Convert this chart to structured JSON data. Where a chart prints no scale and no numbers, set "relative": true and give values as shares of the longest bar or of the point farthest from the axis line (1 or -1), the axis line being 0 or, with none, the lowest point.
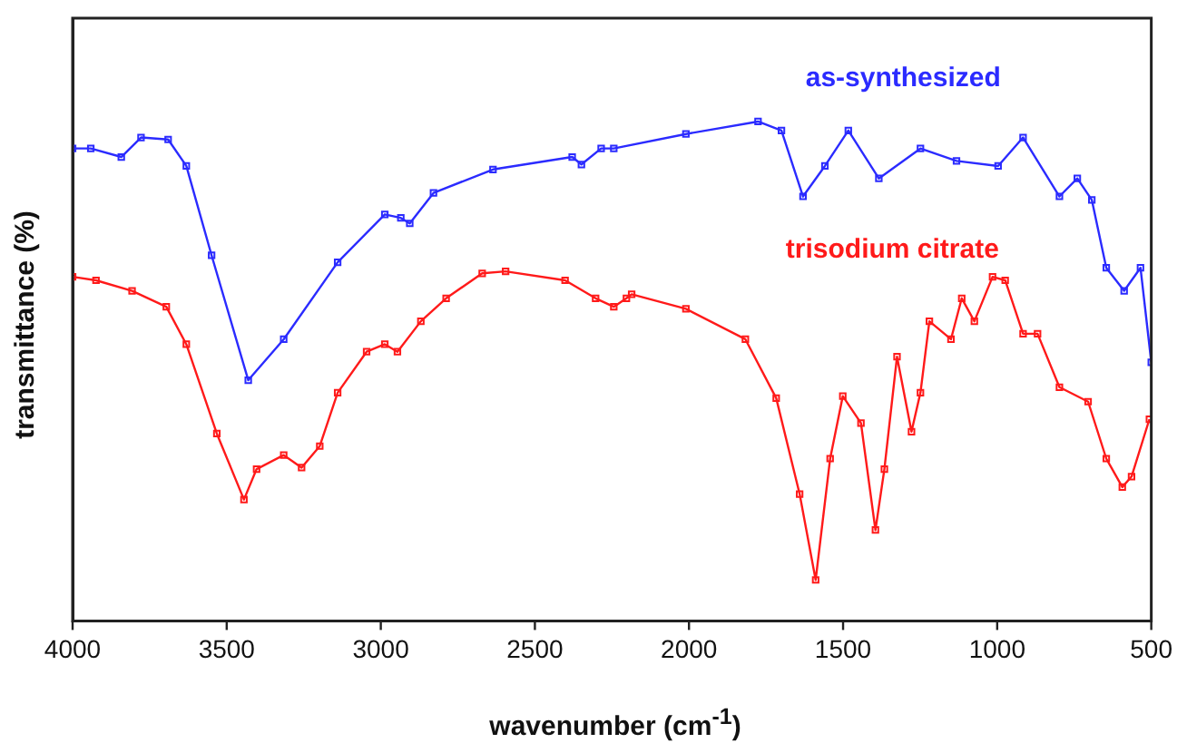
{
  "chart_data": {
    "type": "line",
    "xlabel": "wavenumber (cm$^{-1}$)",
    "ylabel": "transmittance (%)",
    "relative": true,
    "xlim": [
      4000,
      500
    ],
    "xticks": [
      4000,
      3500,
      3000,
      2500,
      2000,
      1500,
      1000,
      500
    ],
    "tick_labels": "x",
    "grid": false,
    "legend": false,
    "marker": "square",
    "line_style": "solid",
    "series": [
      {
        "name": "as-synthesized",
        "color": "#2b2bff",
        "x": [
          4000,
          3941,
          3842,
          3778,
          3690,
          3631,
          3549,
          3430,
          3315,
          3140,
          2987,
          2935,
          2906,
          2829,
          2636,
          2379,
          2349,
          2285,
          2244,
          2010,
          1776,
          1700,
          1630,
          1559,
          1483,
          1384,
          1249,
          1132,
          997,
          916,
          798,
          740,
          693,
          646,
          588,
          535,
          500
        ],
        "values": [
          0.946,
          0.946,
          0.929,
          0.968,
          0.964,
          0.911,
          0.732,
          0.482,
          0.564,
          0.718,
          0.814,
          0.807,
          0.796,
          0.857,
          0.904,
          0.929,
          0.914,
          0.946,
          0.946,
          0.975,
          1,
          0.982,
          0.85,
          0.911,
          0.982,
          0.886,
          0.946,
          0.921,
          0.911,
          0.968,
          0.85,
          0.886,
          0.843,
          0.707,
          0.661,
          0.707,
          0.518
        ]
      },
      {
        "name": "trisodium citrate",
        "color": "#ff1a1a",
        "x": [
          4000,
          3924,
          3807,
          3696,
          3631,
          3532,
          3444,
          3403,
          3315,
          3257,
          3198,
          3140,
          3046,
          2987,
          2946,
          2870,
          2788,
          2671,
          2595,
          2402,
          2303,
          2244,
          2203,
          2186,
          2010,
          1817,
          1717,
          1641,
          1589,
          1542,
          1501,
          1442,
          1395,
          1366,
          1325,
          1278,
          1249,
          1220,
          1150,
          1115,
          1074,
          1015,
          974,
          916,
          869,
          798,
          705,
          646,
          594,
          564,
          506
        ],
        "values": [
          0.689,
          0.682,
          0.661,
          0.629,
          0.554,
          0.375,
          0.243,
          0.304,
          0.332,
          0.307,
          0.35,
          0.457,
          0.539,
          0.554,
          0.539,
          0.6,
          0.646,
          0.696,
          0.7,
          0.682,
          0.646,
          0.629,
          0.646,
          0.654,
          0.625,
          0.564,
          0.446,
          0.254,
          0.082,
          0.325,
          0.45,
          0.396,
          0.182,
          0.304,
          0.529,
          0.379,
          0.457,
          0.6,
          0.564,
          0.646,
          0.6,
          0.689,
          0.682,
          0.575,
          0.575,
          0.468,
          0.439,
          0.325,
          0.268,
          0.289,
          0.404
        ]
      }
    ]
  }
}
